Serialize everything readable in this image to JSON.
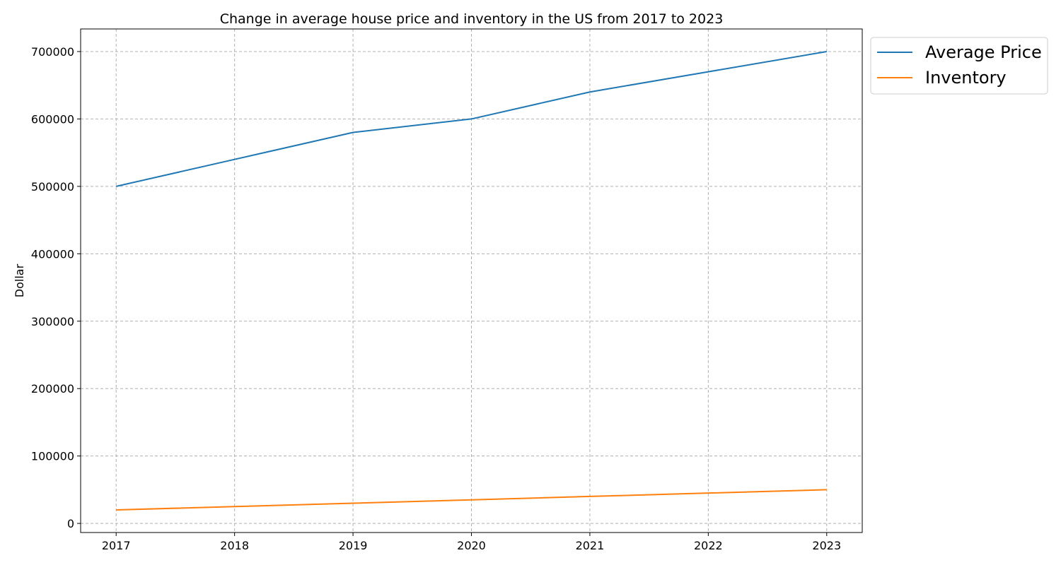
{
  "chart_data": {
    "type": "line",
    "title": "Change in average house price and inventory in the US from 2017 to 2023",
    "xlabel": "",
    "ylabel": "Dollar",
    "x": [
      2017,
      2018,
      2019,
      2020,
      2021,
      2022,
      2023
    ],
    "x_tick_labels": [
      "2017",
      "2018",
      "2019",
      "2020",
      "2021",
      "2022",
      "2023"
    ],
    "y_ticks": [
      0,
      100000,
      200000,
      300000,
      400000,
      500000,
      600000,
      700000
    ],
    "y_tick_labels": [
      "0",
      "100000",
      "200000",
      "300000",
      "400000",
      "500000",
      "600000",
      "700000"
    ],
    "xlim": [
      2016.7,
      2023.3
    ],
    "ylim": [
      -13500,
      733500
    ],
    "grid": true,
    "legend_position": "outside-top-right",
    "series": [
      {
        "name": "Average Price",
        "color": "#1f77b4",
        "values": [
          500000,
          540000,
          580000,
          600000,
          640000,
          670000,
          700000
        ]
      },
      {
        "name": "Inventory",
        "color": "#ff7f0e",
        "values": [
          20000,
          25000,
          30000,
          35000,
          40000,
          45000,
          50000
        ]
      }
    ]
  }
}
